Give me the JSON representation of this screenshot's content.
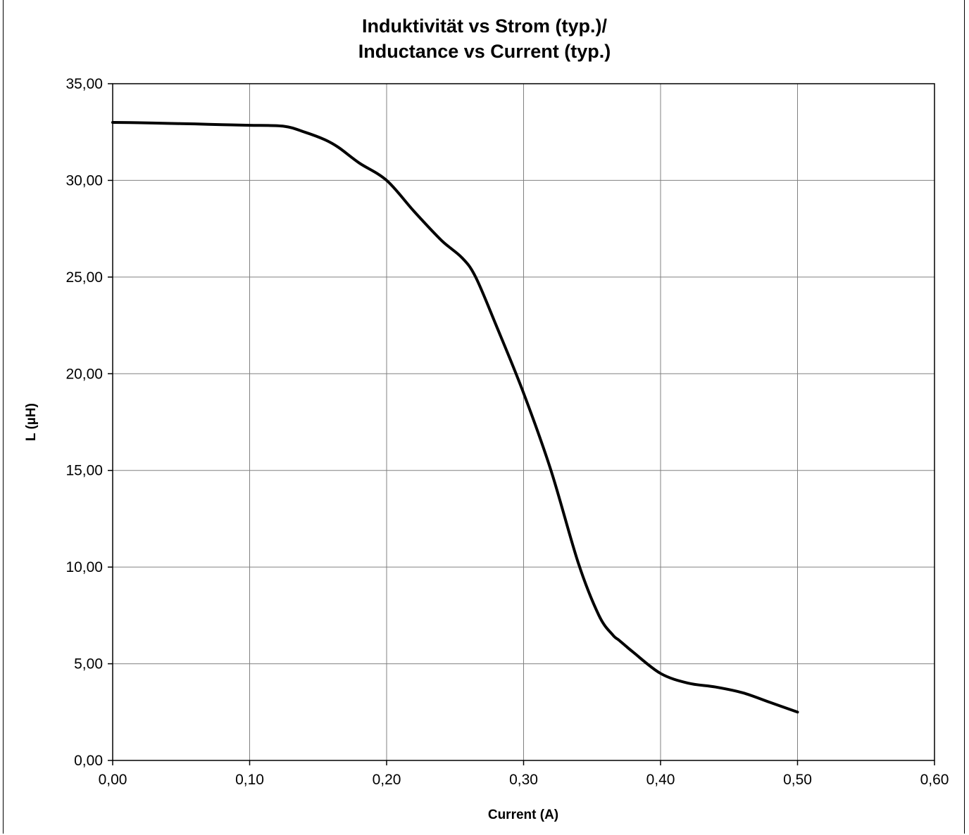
{
  "chart_data": {
    "type": "line",
    "title_line1": "Induktivität vs Strom (typ.)/",
    "title_line2": "Inductance vs Current (typ.)",
    "xlabel": "Current (A)",
    "ylabel": "L (µH)",
    "xlim": [
      0,
      0.6
    ],
    "ylim": [
      0,
      35
    ],
    "x_ticks": [
      0,
      0.1,
      0.2,
      0.3,
      0.4,
      0.5,
      0.6
    ],
    "x_tick_labels": [
      "0,00",
      "0,10",
      "0,20",
      "0,30",
      "0,40",
      "0,50",
      "0,60"
    ],
    "y_ticks": [
      0,
      5,
      10,
      15,
      20,
      25,
      30,
      35
    ],
    "y_tick_labels": [
      "0,00",
      "5,00",
      "10,00",
      "15,00",
      "20,00",
      "25,00",
      "30,00",
      "35,00"
    ],
    "grid": true,
    "series": [
      {
        "color": "#000000",
        "x": [
          0,
          0.02,
          0.04,
          0.06,
          0.08,
          0.1,
          0.125,
          0.14,
          0.155,
          0.165,
          0.18,
          0.2,
          0.22,
          0.24,
          0.255,
          0.265,
          0.28,
          0.3,
          0.32,
          0.34,
          0.355,
          0.365,
          0.37,
          0.38,
          0.4,
          0.42,
          0.44,
          0.46,
          0.48,
          0.5
        ],
        "y": [
          33.0,
          32.98,
          32.95,
          32.92,
          32.88,
          32.85,
          32.8,
          32.5,
          32.1,
          31.7,
          30.9,
          30.0,
          28.4,
          26.9,
          26.0,
          25.0,
          22.5,
          19.0,
          15.0,
          10.2,
          7.5,
          6.5,
          6.2,
          5.6,
          4.5,
          4.0,
          3.8,
          3.5,
          3.0,
          2.5
        ]
      }
    ]
  }
}
